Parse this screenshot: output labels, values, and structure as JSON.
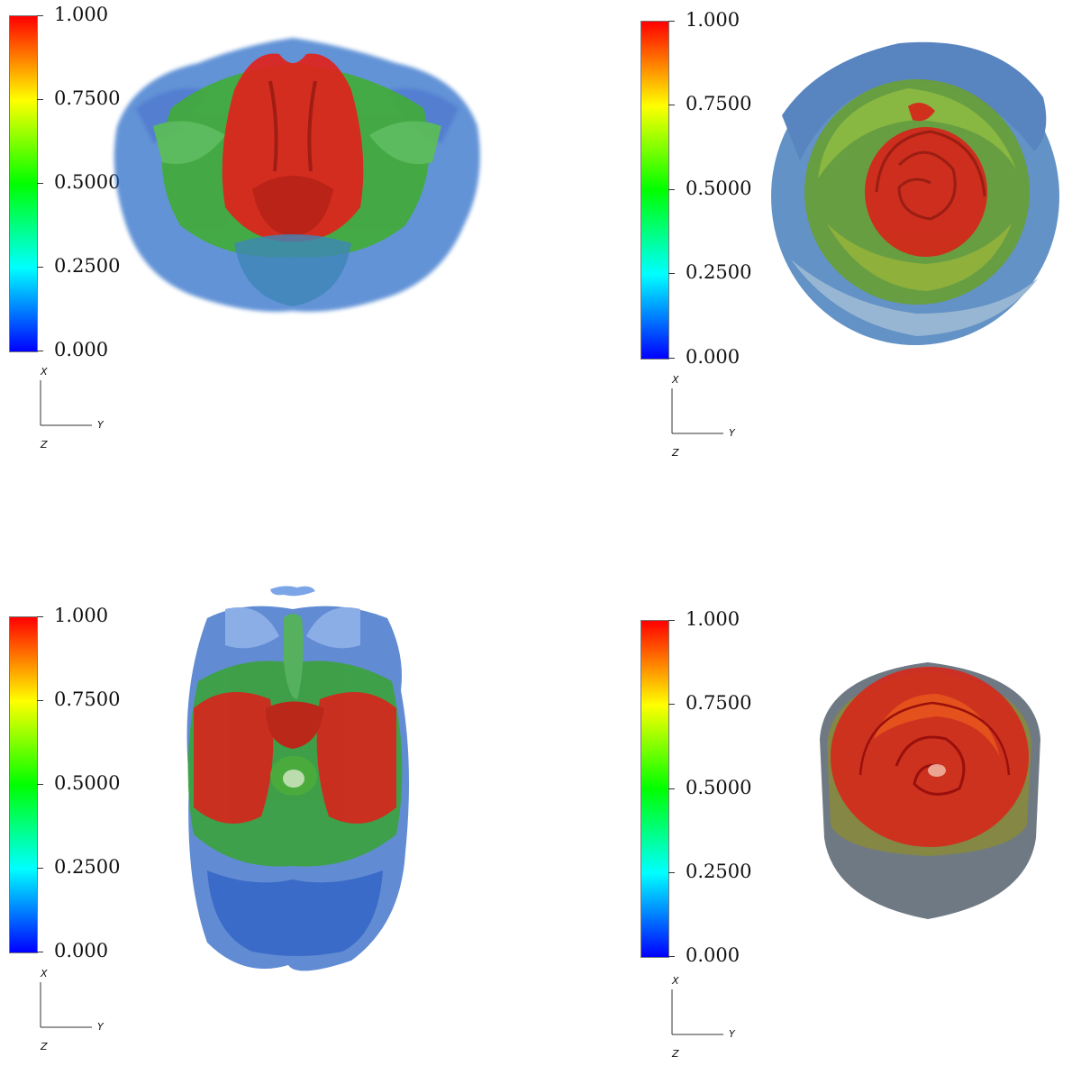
{
  "panels": [
    {
      "id": "top-left",
      "colorbar": {
        "ticks": [
          "1.000",
          "0.7500",
          "0.5000",
          "0.2500",
          "0.000"
        ]
      },
      "axes": {
        "x": "X",
        "y": "Y",
        "z": "Z"
      }
    },
    {
      "id": "top-right",
      "colorbar": {
        "ticks": [
          "1.000",
          "0.7500",
          "0.5000",
          "0.2500",
          "0.000"
        ]
      },
      "axes": {
        "x": "X",
        "y": "Y",
        "z": "Z"
      }
    },
    {
      "id": "bottom-left",
      "colorbar": {
        "ticks": [
          "1.000",
          "0.7500",
          "0.5000",
          "0.2500",
          "0.000"
        ]
      },
      "axes": {
        "x": "X",
        "y": "Y",
        "z": "Z"
      }
    },
    {
      "id": "bottom-right",
      "colorbar": {
        "ticks": [
          "1.000",
          "0.7500",
          "0.5000",
          "0.2500",
          "0.000"
        ]
      },
      "axes": {
        "x": "X",
        "y": "Y",
        "z": "Z"
      }
    }
  ],
  "colormap": [
    "#ff0000",
    "#ff8000",
    "#ffff00",
    "#00ff00",
    "#00ffff",
    "#0000ff"
  ]
}
